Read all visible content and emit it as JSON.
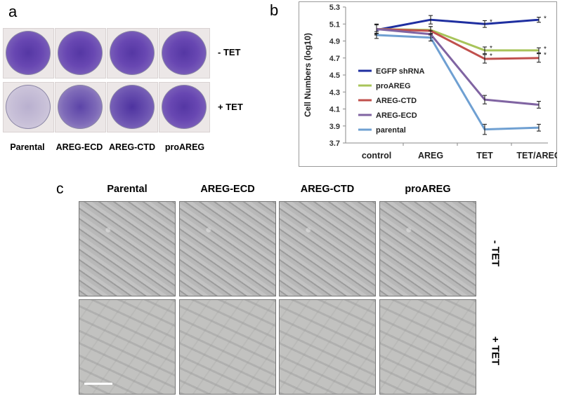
{
  "panel_a": {
    "letter": "a",
    "column_labels": [
      "Parental",
      "AREG-ECD",
      "AREG-CTD",
      "proAREG"
    ],
    "row_labels": [
      "- TET",
      "+ TET"
    ]
  },
  "panel_b": {
    "letter": "b",
    "chart_data": {
      "type": "line",
      "ylabel": "Cell Numbers (log10)",
      "categories": [
        "control",
        "AREG",
        "TET",
        "TET/AREG"
      ],
      "ylim": [
        3.7,
        5.3
      ],
      "yticks": [
        "5.3",
        "5.1",
        "4.9",
        "4.7",
        "4.5",
        "4.3",
        "4.1",
        "3.9",
        "3.7"
      ],
      "legend_position": "left-center",
      "series": [
        {
          "name": "EGFP shRNA",
          "color": "#1f2fa0",
          "values": [
            5.03,
            5.15,
            5.1,
            5.15
          ],
          "errors": [
            0.06,
            0.05,
            0.04,
            0.03
          ],
          "stars": [
            false,
            false,
            true,
            true
          ]
        },
        {
          "name": "proAREG",
          "color": "#a8c45a",
          "values": [
            5.04,
            5.03,
            4.79,
            4.79
          ],
          "errors": [
            0.05,
            0.04,
            0.04,
            0.03
          ],
          "stars": [
            false,
            false,
            true,
            true
          ]
        },
        {
          "name": "AREG-CTD",
          "color": "#c0504d",
          "values": [
            5.04,
            5.02,
            4.69,
            4.7
          ],
          "errors": [
            0.06,
            0.05,
            0.05,
            0.05
          ],
          "stars": [
            false,
            false,
            true,
            true
          ]
        },
        {
          "name": "AREG-ECD",
          "color": "#8064a2",
          "values": [
            5.04,
            4.98,
            4.21,
            4.15
          ],
          "errors": [
            0.05,
            0.04,
            0.05,
            0.04
          ],
          "stars": [
            false,
            false,
            false,
            false
          ]
        },
        {
          "name": "parental",
          "color": "#6fa0d2",
          "values": [
            4.97,
            4.94,
            3.86,
            3.88
          ],
          "errors": [
            0.04,
            0.04,
            0.06,
            0.04
          ],
          "stars": [
            false,
            false,
            false,
            false
          ]
        }
      ],
      "star_symbol": "*"
    }
  },
  "panel_c": {
    "letter": "c",
    "column_labels": [
      "Parental",
      "AREG-ECD",
      "AREG-CTD",
      "proAREG"
    ],
    "row_labels": [
      "- TET",
      "+ TET"
    ]
  }
}
